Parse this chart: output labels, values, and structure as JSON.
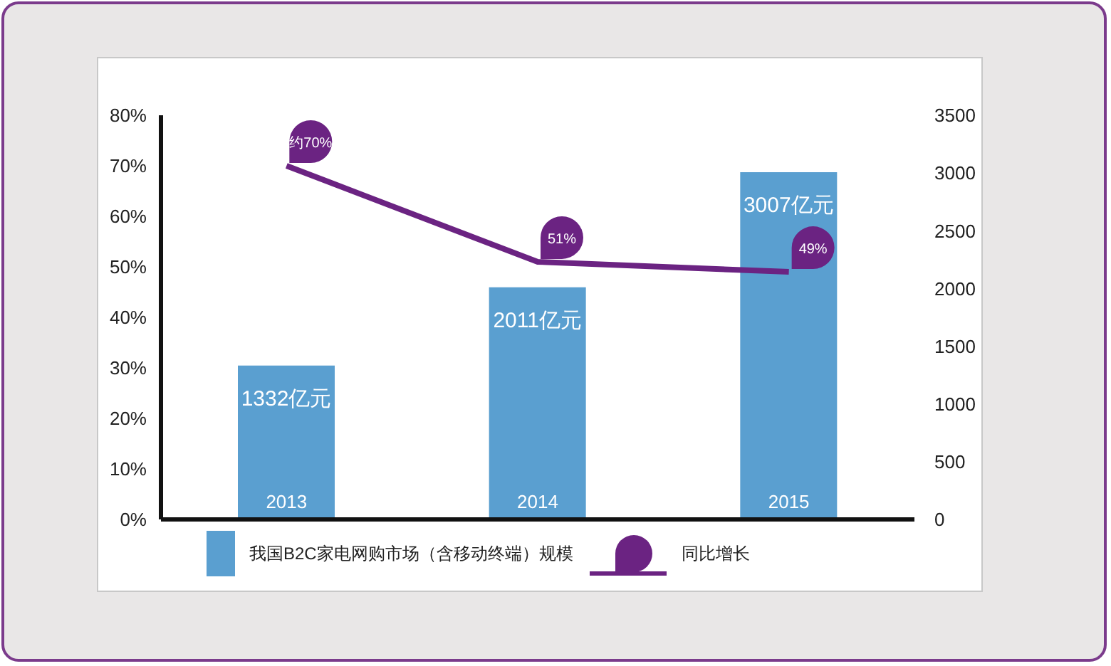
{
  "chart_data": {
    "type": "bar",
    "categories": [
      "2013",
      "2014",
      "2015"
    ],
    "series": [
      {
        "name": "我国B2C家电网购市场（含移动终端）规模",
        "color": "#5a9fd0",
        "values": [
          1332,
          2011,
          3007
        ],
        "axis": "y2",
        "value_labels": [
          "1332亿元",
          "2011亿元",
          "3007亿元"
        ]
      },
      {
        "name": "同比增长",
        "type": "line",
        "color": "#6b2382",
        "values": [
          70,
          51,
          49
        ],
        "axis": "y",
        "value_labels": [
          "约70%",
          "51%",
          "49%"
        ]
      }
    ],
    "ylim": [
      0,
      80
    ],
    "yticks": [
      {
        "value": 0,
        "label": "0%"
      },
      {
        "value": 10,
        "label": "10%"
      },
      {
        "value": 20,
        "label": "20%"
      },
      {
        "value": 30,
        "label": "30%"
      },
      {
        "value": 40,
        "label": "40%"
      },
      {
        "value": 50,
        "label": "50%"
      },
      {
        "value": 60,
        "label": "60%"
      },
      {
        "value": 70,
        "label": "70%"
      },
      {
        "value": 80,
        "label": "80%"
      }
    ],
    "y2lim": [
      0,
      3500
    ],
    "y2ticks": [
      0,
      500,
      1000,
      1500,
      2000,
      2500,
      3000,
      3500
    ],
    "legend": "bottom",
    "marker": "none",
    "line_style": "solid"
  }
}
